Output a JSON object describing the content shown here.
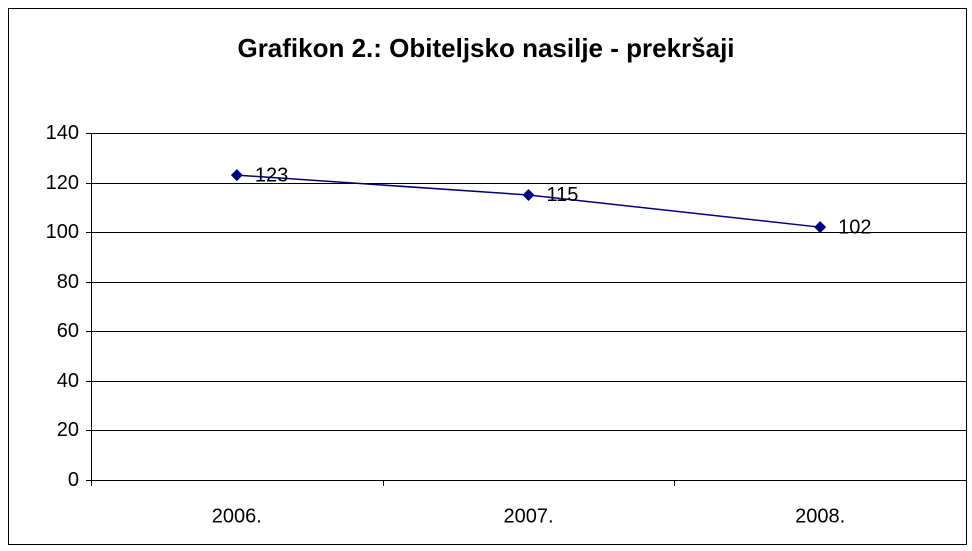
{
  "chart_data": {
    "type": "line",
    "title": "Grafikon 2.: Obiteljsko nasilje - prekršaji",
    "categories": [
      "2006.",
      "2007.",
      "2008."
    ],
    "values": [
      123,
      115,
      102
    ],
    "color": "#000080",
    "ylim": [
      0,
      140
    ],
    "yticks": [
      0,
      20,
      40,
      60,
      80,
      100,
      120,
      140
    ],
    "grid": true
  }
}
